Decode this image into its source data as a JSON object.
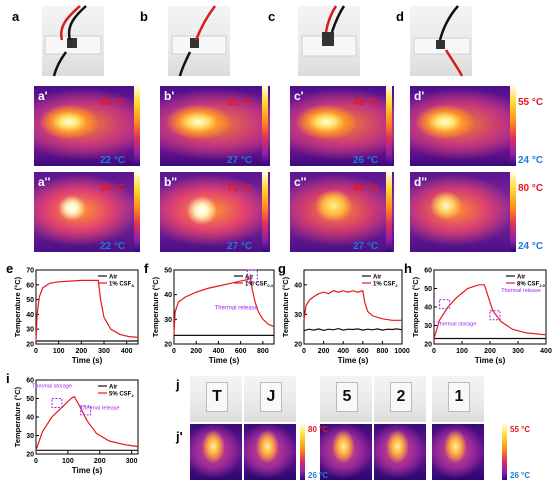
{
  "panel_labels": {
    "a": "a",
    "b": "b",
    "c": "c",
    "d": "d",
    "a1": "a'",
    "b1": "b'",
    "c1": "c'",
    "d1": "d'",
    "a2": "a''",
    "b2": "b''",
    "c2": "c''",
    "d2": "d''",
    "e": "e",
    "f": "f",
    "g": "g",
    "h": "h",
    "i": "i",
    "j": "j",
    "j1": "j'"
  },
  "thermal_row1": [
    {
      "max": "60 °C",
      "min": "22 °C"
    },
    {
      "max": "52 °C",
      "min": "27 °C"
    },
    {
      "max": "45 °C",
      "min": "26 °C"
    },
    {
      "max": "55 °C",
      "min": "24 °C"
    }
  ],
  "thermal_row2": [
    {
      "max": "90 °C",
      "min": "22 °C"
    },
    {
      "max": "75 °C",
      "min": "27 °C"
    },
    {
      "max": "60 °C",
      "min": "27 °C"
    },
    {
      "max": "80 °C",
      "min": "24 °C"
    }
  ],
  "letters": [
    "T",
    "J",
    "5",
    "2",
    "1"
  ],
  "jscale": [
    {
      "max": "80 °C",
      "min": "26 °C"
    },
    {
      "max": "55 °C",
      "min": "26 °C"
    }
  ],
  "colors": {
    "air": "#111111",
    "sample": "#e8171a",
    "annotation": "#a020f0"
  },
  "chart_data": [
    {
      "id": "e",
      "type": "line",
      "xlabel": "Time (s)",
      "ylabel": "Temperature (°C)",
      "xlim": [
        0,
        450
      ],
      "ylim": [
        20,
        70
      ],
      "xticks": [
        0,
        100,
        200,
        300,
        400
      ],
      "yticks": [
        20,
        30,
        40,
        50,
        60,
        70
      ],
      "legend": [
        "Air",
        "1% CSF"
      ],
      "series": [
        {
          "name": "Air",
          "x": [
            0,
            450
          ],
          "y": [
            22,
            22
          ]
        },
        {
          "name": "1% CSF",
          "x": [
            0,
            5,
            15,
            30,
            60,
            100,
            150,
            200,
            250,
            275,
            285,
            300,
            330,
            370,
            410,
            450
          ],
          "y": [
            22,
            40,
            52,
            58,
            61,
            62,
            62.5,
            63,
            63,
            63,
            50,
            38,
            30,
            26.5,
            25,
            24.5
          ]
        }
      ]
    },
    {
      "id": "f",
      "type": "line",
      "xlabel": "Time (s)",
      "ylabel": "Temperature (°C)",
      "xlim": [
        0,
        900
      ],
      "ylim": [
        20,
        50
      ],
      "xticks": [
        0,
        200,
        400,
        600,
        800
      ],
      "yticks": [
        20,
        30,
        40,
        50
      ],
      "legend": [
        "Air",
        "1% CSF"
      ],
      "annotation": "Thermal release",
      "series": [
        {
          "name": "Air",
          "x": [
            0,
            900
          ],
          "y": [
            23.5,
            23.5
          ]
        },
        {
          "name": "1% CSF",
          "x": [
            0,
            10,
            40,
            100,
            200,
            300,
            400,
            500,
            600,
            650,
            690,
            700,
            730,
            760,
            800,
            850,
            900
          ],
          "y": [
            24,
            33,
            37,
            39,
            41,
            42.5,
            43.5,
            44.5,
            45.5,
            46,
            46.5,
            43,
            37,
            33,
            30,
            28,
            27
          ]
        }
      ]
    },
    {
      "id": "g",
      "type": "line",
      "xlabel": "Time (s)",
      "ylabel": "Temperature (°C)",
      "xlim": [
        0,
        1000
      ],
      "ylim": [
        20,
        45
      ],
      "xticks": [
        0,
        200,
        400,
        600,
        800,
        1000
      ],
      "yticks": [
        20,
        30,
        40
      ],
      "legend": [
        "Air",
        "1% CSF"
      ],
      "series": [
        {
          "name": "Air",
          "x": [
            0,
            50,
            100,
            150,
            200,
            250,
            300,
            350,
            400,
            450,
            500,
            550,
            600,
            650,
            700,
            750,
            800,
            850,
            900,
            950,
            1000
          ],
          "y": [
            24.5,
            25,
            24.7,
            25.1,
            24.6,
            25,
            24.8,
            25.2,
            24.7,
            25,
            24.9,
            25.1,
            24.7,
            25,
            24.8,
            25.1,
            24.7,
            25,
            24.9,
            25.1,
            24.8
          ]
        },
        {
          "name": "1% CSF",
          "x": [
            0,
            20,
            60,
            100,
            150,
            200,
            250,
            300,
            350,
            400,
            450,
            500,
            550,
            600,
            620,
            650,
            700,
            800,
            900,
            1000
          ],
          "y": [
            28,
            33,
            35,
            36,
            37,
            37.5,
            37,
            38,
            37.5,
            38,
            37.5,
            38,
            37.5,
            38,
            34,
            31,
            29.5,
            28.5,
            28,
            28
          ]
        }
      ]
    },
    {
      "id": "h",
      "type": "line",
      "xlabel": "Time (s)",
      "ylabel": "Temperature (°C)",
      "xlim": [
        0,
        400
      ],
      "ylim": [
        20,
        60
      ],
      "xticks": [
        0,
        100,
        200,
        300,
        400
      ],
      "yticks": [
        20,
        30,
        40,
        50,
        60
      ],
      "legend": [
        "Air",
        "8% CSF"
      ],
      "annotations": [
        "Thermal storage",
        "Thermal release"
      ],
      "series": [
        {
          "name": "Air",
          "x": [
            0,
            400
          ],
          "y": [
            23,
            23
          ]
        },
        {
          "name": "8% CSF",
          "x": [
            0,
            20,
            50,
            80,
            120,
            160,
            180,
            195,
            210,
            240,
            280,
            330,
            400
          ],
          "y": [
            23,
            33,
            40,
            45,
            50,
            52,
            52,
            45,
            38,
            32,
            28,
            26,
            25
          ]
        }
      ]
    },
    {
      "id": "i",
      "type": "line",
      "xlabel": "Time (s)",
      "ylabel": "Temperature (°C)",
      "xlim": [
        0,
        320
      ],
      "ylim": [
        20,
        60
      ],
      "xticks": [
        0,
        100,
        200,
        300
      ],
      "yticks": [
        20,
        30,
        40,
        50,
        60
      ],
      "legend": [
        "Air",
        "5% CSF"
      ],
      "annotations": [
        "Thermal storage",
        "Thermal release"
      ],
      "series": [
        {
          "name": "Air",
          "x": [
            0,
            320
          ],
          "y": [
            22,
            22
          ]
        },
        {
          "name": "5% CSF",
          "x": [
            0,
            20,
            50,
            80,
            110,
            120,
            140,
            160,
            190,
            230,
            280,
            320
          ],
          "y": [
            22,
            32,
            40,
            45,
            50,
            51,
            45,
            38,
            31,
            27,
            25,
            24
          ]
        }
      ]
    }
  ]
}
